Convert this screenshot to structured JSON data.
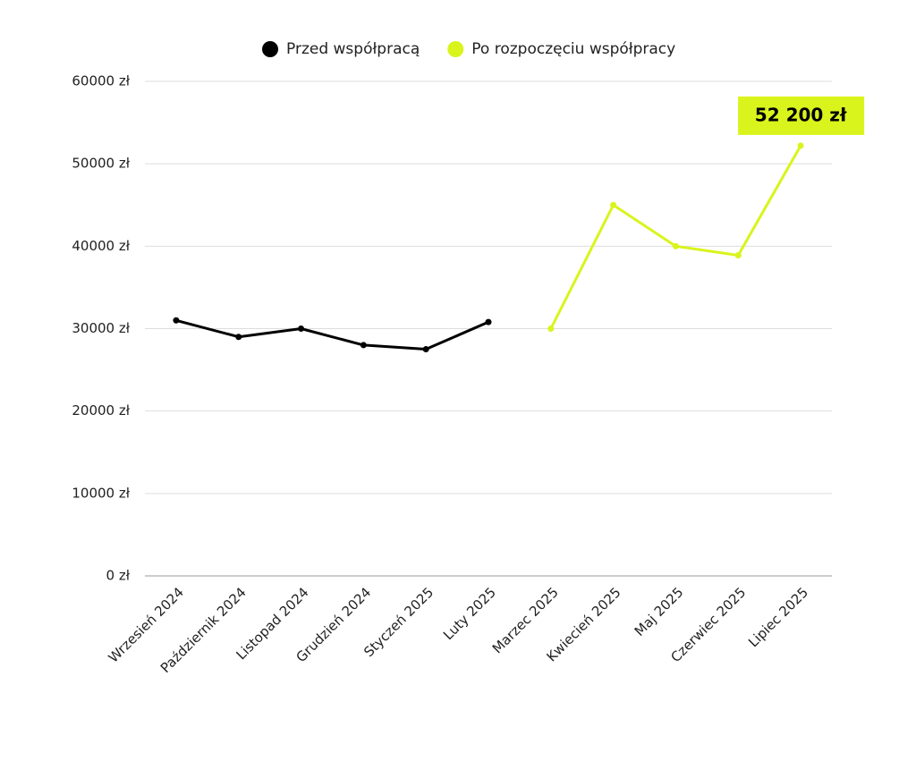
{
  "chart_data": {
    "type": "line",
    "categories": [
      "Wrzesień 2024",
      "Październik 2024",
      "Listopad 2024",
      "Grudzień 2024",
      "Styczeń 2025",
      "Luty 2025",
      "Marzec 2025",
      "Kwiecień 2025",
      "Maj 2025",
      "Czerwiec 2025",
      "Lipiec 2025"
    ],
    "series": [
      {
        "name": "Przed współpracą",
        "color": "#000000",
        "values": [
          31000,
          29000,
          30000,
          28000,
          27500,
          30800,
          null,
          null,
          null,
          null,
          null
        ]
      },
      {
        "name": "Po rozpoczęciu współpracy",
        "color": "#d9f41c",
        "values": [
          null,
          null,
          null,
          null,
          null,
          null,
          30000,
          45000,
          40000,
          38900,
          52200
        ],
        "value_labels": [
          null,
          null,
          null,
          null,
          null,
          null,
          null,
          null,
          null,
          null,
          "52 200 zł"
        ]
      }
    ],
    "ylim": [
      0,
      60000
    ],
    "yticks": [
      {
        "value": 0,
        "label": "0 zł"
      },
      {
        "value": 10000,
        "label": "10000 zł"
      },
      {
        "value": 20000,
        "label": "20000 zł"
      },
      {
        "value": 30000,
        "label": "30000 zł"
      },
      {
        "value": 40000,
        "label": "40000 zł"
      },
      {
        "value": 50000,
        "label": "50000 zł"
      },
      {
        "value": 60000,
        "label": "60000 zł"
      }
    ],
    "grid": true
  }
}
